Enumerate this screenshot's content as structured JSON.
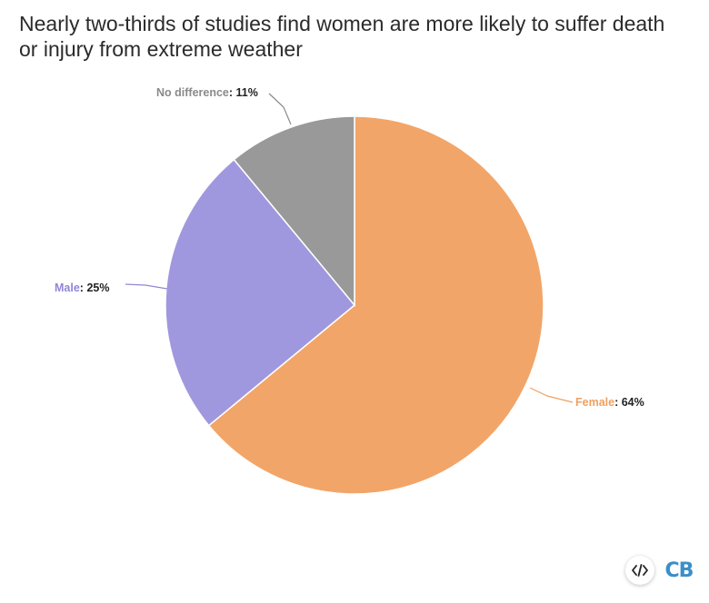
{
  "chart_data": {
    "type": "pie",
    "title": "Nearly two-thirds of studies find women are more likely to suffer death or injury from extreme weather",
    "slices": [
      {
        "label": "Female",
        "value": 64,
        "display": "64%",
        "color": "#f2a568",
        "label_color": "#f0a060"
      },
      {
        "label": "Male",
        "value": 25,
        "display": "25%",
        "color": "#9f98de",
        "label_color": "#8f87d6"
      },
      {
        "label": "No difference",
        "value": 11,
        "display": "11%",
        "color": "#999999",
        "label_color": "#8a8a8a"
      }
    ],
    "start_angle_deg": 0,
    "direction": "clockwise"
  },
  "brand": {
    "logo_text": "CB",
    "logo_color": "#3a8fc9",
    "embed_icon": "code-embed-icon"
  }
}
